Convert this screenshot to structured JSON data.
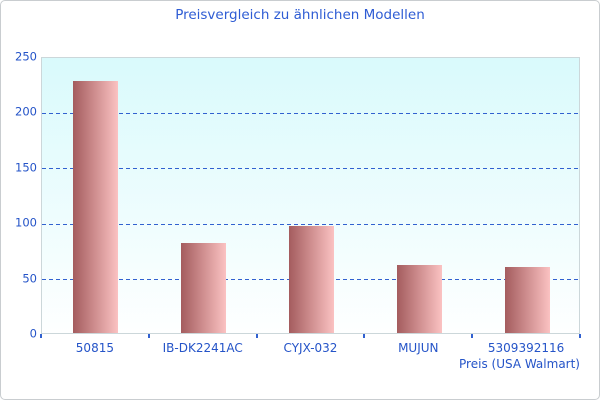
{
  "chart_data": {
    "type": "bar",
    "title": "Preisvergleich zu ähnlichen Modellen",
    "categories": [
      "50815",
      "IB-DK2241AC",
      "CYJX-032",
      "MUJUN",
      "5309392116"
    ],
    "values": [
      227,
      81,
      97,
      61,
      60
    ],
    "xlabel": "Preis (USA Walmart)",
    "ylabel": "",
    "ylim": [
      0,
      250
    ],
    "yticks": [
      0,
      50,
      100,
      150,
      200,
      250
    ],
    "grid": "horizontal-dashed",
    "legend": "none",
    "colors": {
      "title_text": "#2e5cd4",
      "tick_label_text": "#2554c8",
      "gridline": "#3161d0",
      "x_tick": "#3161d0",
      "plot_border": "#ccd7da",
      "plot_bg_top": "#d9fafc",
      "plot_bg_bottom": "#feffff",
      "bar_gradient_left": "#a45c5e",
      "bar_gradient_right": "#fbc2c2"
    }
  }
}
